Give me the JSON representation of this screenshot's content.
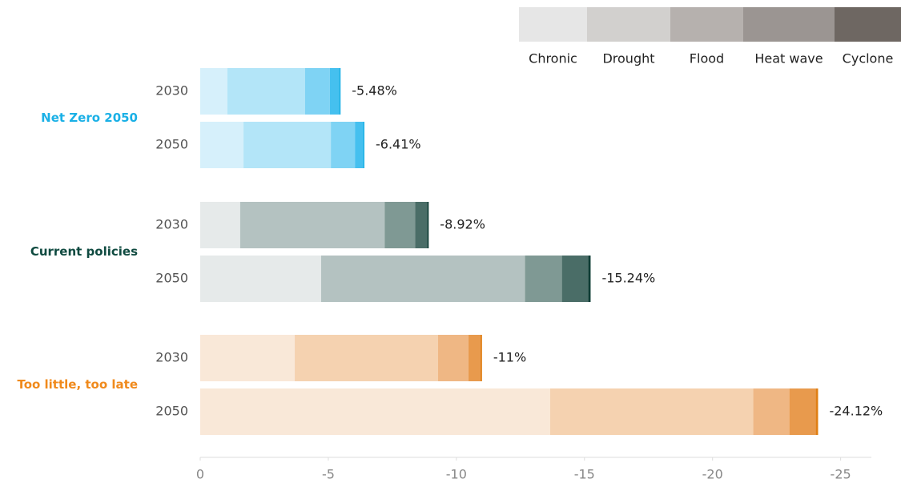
{
  "chart_data": {
    "type": "stacked-bar-grouped",
    "legend": [
      {
        "name": "Chronic",
        "color": "#e6e6e6"
      },
      {
        "name": "Drought",
        "color": "#d2d0ce"
      },
      {
        "name": "Flood",
        "color": "#b6b1ae"
      },
      {
        "name": "Heat wave",
        "color": "#9b9592"
      },
      {
        "name": "Cyclone",
        "color": "#6e6762"
      }
    ],
    "groups": [
      {
        "name": "Net Zero 2050",
        "color": "#1ab0e6",
        "colors": [
          "#d6f0fb",
          "#b3e5f8",
          "#7fd3f4",
          "#45c0ef",
          "#1ab0e6"
        ],
        "rows": [
          {
            "year": "2030",
            "values": [
              -1.06,
              -3.03,
              -0.97,
              -0.36,
              -0.06
            ],
            "total": -5.48,
            "total_label": "-5.48%"
          },
          {
            "year": "2050",
            "values": [
              -1.69,
              -3.41,
              -0.94,
              -0.32,
              -0.05
            ],
            "total": -6.41,
            "total_label": "-6.41%"
          }
        ]
      },
      {
        "name": "Current policies",
        "color": "#0f4a40",
        "colors": [
          "#e6eaea",
          "#b4c2c1",
          "#7f9994",
          "#4a6d67",
          "#0f3d36"
        ],
        "rows": [
          {
            "year": "2030",
            "values": [
              -1.56,
              -5.64,
              -1.19,
              -0.47,
              -0.06
            ],
            "total": -8.92,
            "total_label": "-8.92%"
          },
          {
            "year": "2050",
            "values": [
              -4.72,
              -7.96,
              -1.44,
              -1.03,
              -0.09
            ],
            "total": -15.24,
            "total_label": "-15.24%"
          }
        ]
      },
      {
        "name": "Too little, too late",
        "color": "#f08a1c",
        "colors": [
          "#f9e8d8",
          "#f5d2b0",
          "#efb784",
          "#e89a4d",
          "#e07f14"
        ],
        "rows": [
          {
            "year": "2030",
            "values": [
              -3.69,
              -5.59,
              -1.19,
              -0.47,
              -0.06
            ],
            "total": -11,
            "total_label": "-11%"
          },
          {
            "year": "2050",
            "values": [
              -13.66,
              -7.93,
              -1.41,
              -1.03,
              -0.09
            ],
            "total": -24.12,
            "total_label": "-24.12%"
          }
        ]
      }
    ],
    "xlim": [
      0,
      -26.2
    ],
    "xticks": [
      0,
      -5,
      -10,
      -15,
      -20,
      -25
    ]
  }
}
